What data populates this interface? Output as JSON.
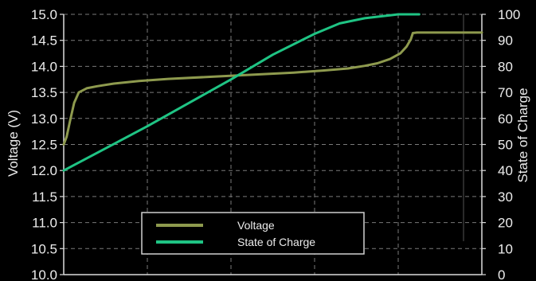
{
  "chart_data": {
    "type": "line",
    "title": "",
    "xlabel": "",
    "y_left": {
      "label": "Voltage (V)",
      "range": [
        10.0,
        15.0
      ],
      "ticks": [
        10.0,
        10.5,
        11.0,
        11.5,
        12.0,
        12.5,
        13.0,
        13.5,
        14.0,
        14.5,
        15.0
      ],
      "tick_labels": [
        "10.0",
        "10.5",
        "11.0",
        "11.5",
        "12.0",
        "12.5",
        "13.0",
        "13.5",
        "14.0",
        "14.5",
        "15.0"
      ]
    },
    "y_right": {
      "label": "State of Charge",
      "range": [
        0,
        100
      ],
      "ticks": [
        0,
        10,
        20,
        30,
        40,
        50,
        60,
        70,
        80,
        90,
        100
      ],
      "tick_labels": [
        "0",
        "10",
        "20",
        "30",
        "40",
        "50",
        "60",
        "70",
        "80",
        "90",
        "100"
      ]
    },
    "x_range": [
      0,
      100
    ],
    "grid": true,
    "legend_position": "bottom-center",
    "series": [
      {
        "name": "Voltage",
        "axis": "left",
        "color": "#8e9a4e",
        "points": [
          [
            0,
            12.5
          ],
          [
            0.7,
            12.65
          ],
          [
            1.5,
            12.95
          ],
          [
            2.5,
            13.3
          ],
          [
            3.6,
            13.5
          ],
          [
            5.5,
            13.58
          ],
          [
            8,
            13.62
          ],
          [
            12,
            13.67
          ],
          [
            18,
            13.72
          ],
          [
            25,
            13.76
          ],
          [
            35,
            13.8
          ],
          [
            45,
            13.84
          ],
          [
            55,
            13.88
          ],
          [
            62,
            13.92
          ],
          [
            68,
            13.96
          ],
          [
            72,
            14.01
          ],
          [
            75,
            14.06
          ],
          [
            78,
            14.14
          ],
          [
            80.5,
            14.25
          ],
          [
            82,
            14.38
          ],
          [
            83,
            14.52
          ],
          [
            83.5,
            14.64
          ],
          [
            84.5,
            14.65
          ],
          [
            100,
            14.65
          ]
        ]
      },
      {
        "name": "State of Charge",
        "axis": "right",
        "color": "#1fc484",
        "points": [
          [
            0,
            40
          ],
          [
            10,
            48.5
          ],
          [
            20,
            57
          ],
          [
            30,
            66
          ],
          [
            40,
            75
          ],
          [
            50,
            84.5
          ],
          [
            60,
            92.5
          ],
          [
            66,
            96.5
          ],
          [
            72,
            98.5
          ],
          [
            78,
            99.6
          ],
          [
            80,
            100
          ],
          [
            85,
            100
          ]
        ]
      }
    ]
  }
}
